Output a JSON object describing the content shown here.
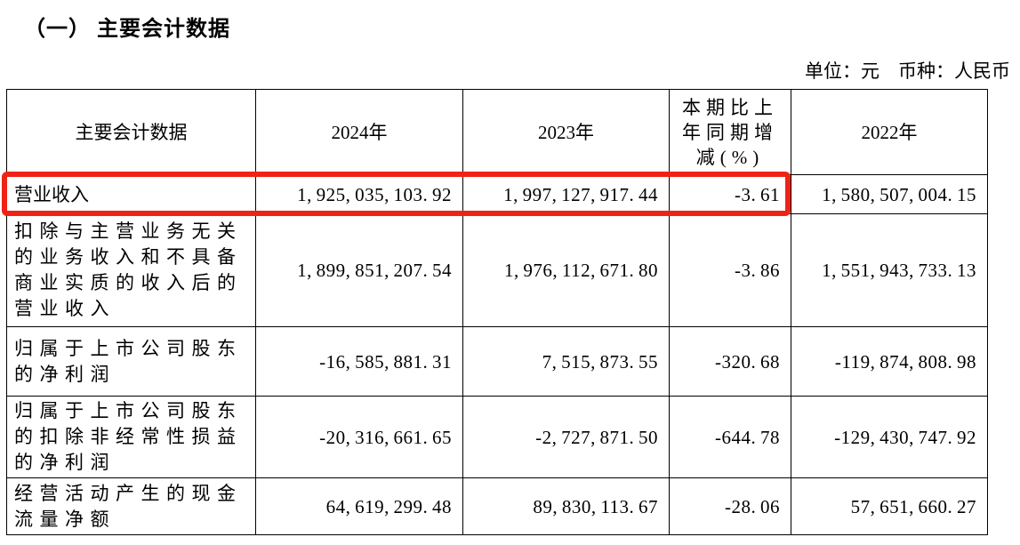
{
  "page": {
    "title": "（一） 主要会计数据",
    "unit_note": "单位：元　币种：人民币"
  },
  "table": {
    "columns": [
      "主要会计数据",
      "2024年",
      "2023年",
      "本期比上\n年同期增\n减(%)",
      "2022年"
    ],
    "rows": [
      {
        "label": "营业收入",
        "y2024": "1,925,035,103.92",
        "y2023": "1,997,127,917.44",
        "change_pct": "-3.61",
        "y2022": "1,580,507,004.15",
        "highlighted": true
      },
      {
        "label": "扣除与主营业务无关的业务收入和不具备商业实质的收入后的营业收入",
        "y2024": "1,899,851,207.54",
        "y2023": "1,976,112,671.80",
        "change_pct": "-3.86",
        "y2022": "1,551,943,733.13",
        "highlighted": false
      },
      {
        "label": "归属于上市公司股东的净利润",
        "y2024": "-16,585,881.31",
        "y2023": "7,515,873.55",
        "change_pct": "-320.68",
        "y2022": "-119,874,808.98",
        "highlighted": false
      },
      {
        "label": "归属于上市公司股东的扣除非经常性损益的净利润",
        "y2024": "-20,316,661.65",
        "y2023": "-2,727,871.50",
        "change_pct": "-644.78",
        "y2022": "-129,430,747.92",
        "highlighted": false
      },
      {
        "label": "经营活动产生的现金流量净额",
        "y2024": "64,619,299.48",
        "y2023": "89,830,113.67",
        "change_pct": "-28.06",
        "y2022": "57,651,660.27",
        "highlighted": false
      }
    ]
  },
  "highlight": {
    "color": "#ee2316"
  }
}
